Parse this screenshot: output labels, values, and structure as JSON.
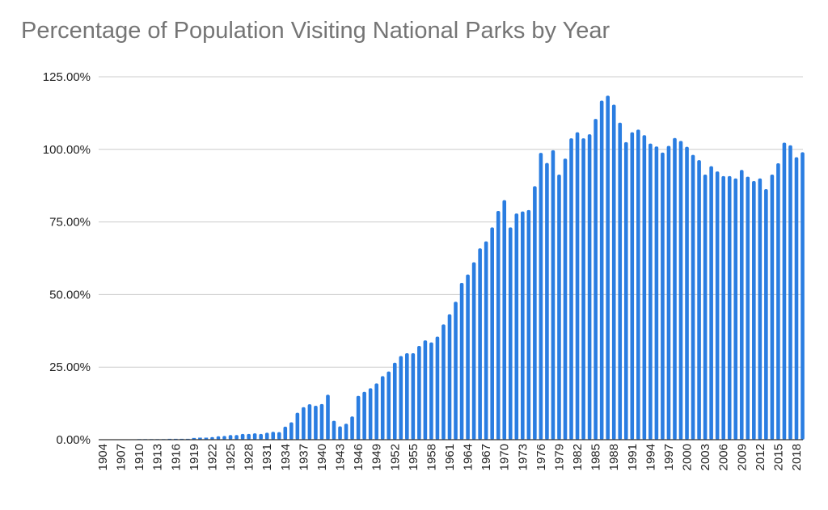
{
  "chart_data": {
    "type": "bar",
    "title": "Percentage of Population Visiting National Parks by Year",
    "xlabel": "",
    "ylabel": "",
    "ylim": [
      0,
      125
    ],
    "y_ticks": [
      0,
      25,
      50,
      75,
      100,
      125
    ],
    "y_tick_labels": [
      "0.00%",
      "25.00%",
      "50.00%",
      "75.00%",
      "100.00%",
      "125.00%"
    ],
    "x_tick_labels": [
      "1904",
      "1907",
      "1910",
      "1913",
      "1916",
      "1919",
      "1922",
      "1925",
      "1928",
      "1931",
      "1934",
      "1937",
      "1940",
      "1943",
      "1946",
      "1949",
      "1952",
      "1955",
      "1958",
      "1961",
      "1964",
      "1967",
      "1970",
      "1973",
      "1976",
      "1979",
      "1982",
      "1985",
      "1988",
      "1991",
      "1994",
      "1997",
      "2000",
      "2003",
      "2006",
      "2009",
      "2012",
      "2015",
      "2018"
    ],
    "grid": true,
    "legend": "none",
    "bar_color": "#2a7de1",
    "categories": [
      1904,
      1905,
      1906,
      1907,
      1908,
      1909,
      1910,
      1911,
      1912,
      1913,
      1914,
      1915,
      1916,
      1917,
      1918,
      1919,
      1920,
      1921,
      1922,
      1923,
      1924,
      1925,
      1926,
      1927,
      1928,
      1929,
      1930,
      1931,
      1932,
      1933,
      1934,
      1935,
      1936,
      1937,
      1938,
      1939,
      1940,
      1941,
      1942,
      1943,
      1944,
      1945,
      1946,
      1947,
      1948,
      1949,
      1950,
      1951,
      1952,
      1953,
      1954,
      1955,
      1956,
      1957,
      1958,
      1959,
      1960,
      1961,
      1962,
      1963,
      1964,
      1965,
      1966,
      1967,
      1968,
      1969,
      1970,
      1971,
      1972,
      1973,
      1974,
      1975,
      1976,
      1977,
      1978,
      1979,
      1980,
      1981,
      1982,
      1983,
      1984,
      1985,
      1986,
      1987,
      1988,
      1989,
      1990,
      1991,
      1992,
      1993,
      1994,
      1995,
      1996,
      1997,
      1998,
      1999,
      2000,
      2001,
      2002,
      2003,
      2004,
      2005,
      2006,
      2007,
      2008,
      2009,
      2010,
      2011,
      2012,
      2013,
      2014,
      2015,
      2016,
      2017,
      2018,
      2019
    ],
    "values": [
      0.1,
      0.1,
      0.0,
      0.0,
      0.0,
      0.0,
      0.2,
      0.2,
      0.2,
      0.2,
      0.2,
      0.3,
      0.3,
      0.3,
      0.3,
      0.6,
      0.7,
      0.7,
      0.9,
      1.2,
      1.3,
      1.6,
      1.6,
      2.0,
      2.0,
      2.2,
      2.0,
      2.4,
      2.7,
      2.6,
      4.5,
      6.0,
      9.3,
      11.2,
      12.2,
      11.7,
      12.3,
      15.5,
      6.5,
      4.6,
      5.5,
      8.0,
      15.1,
      16.5,
      17.7,
      19.4,
      21.9,
      23.5,
      26.5,
      28.8,
      29.8,
      29.8,
      32.3,
      34.2,
      33.5,
      35.5,
      39.7,
      43.2,
      47.5,
      54.0,
      56.9,
      61.1,
      65.9,
      68.3,
      73.1,
      78.8,
      82.5,
      73.1,
      77.9,
      78.6,
      79.1,
      87.3,
      98.8,
      95.3,
      99.7,
      91.3,
      96.8,
      103.8,
      105.9,
      103.8,
      105.2,
      110.5,
      116.8,
      118.5,
      115.4,
      109.2,
      102.5,
      105.9,
      106.8,
      104.9,
      102.0,
      101.0,
      98.9,
      101.2,
      103.9,
      102.9,
      100.9,
      98.1,
      96.3,
      91.3,
      94.2,
      92.4,
      90.8,
      90.8,
      90.0,
      92.9,
      90.6,
      89.1,
      90.0,
      86.3,
      91.3,
      95.2,
      102.3,
      101.4,
      97.3,
      99.0
    ]
  }
}
